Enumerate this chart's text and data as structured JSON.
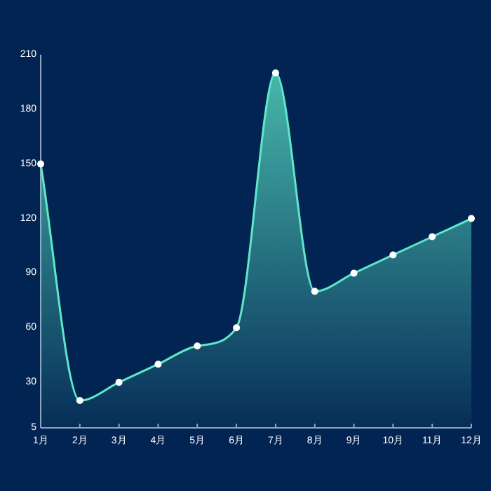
{
  "chart_data": {
    "type": "area",
    "categories": [
      "1月",
      "2月",
      "3月",
      "4月",
      "5月",
      "6月",
      "7月",
      "8月",
      "9月",
      "10月",
      "11月",
      "12月"
    ],
    "series": [
      {
        "color": "#5ee8c8",
        "values": [
          150,
          20,
          30,
          40,
          50,
          60,
          200,
          80,
          90,
          100,
          110,
          120
        ]
      }
    ],
    "ylim": [
      5,
      210
    ],
    "yticks": [
      5,
      30,
      60,
      90,
      120,
      150,
      180,
      210
    ],
    "marker": "circle",
    "grid": false
  }
}
